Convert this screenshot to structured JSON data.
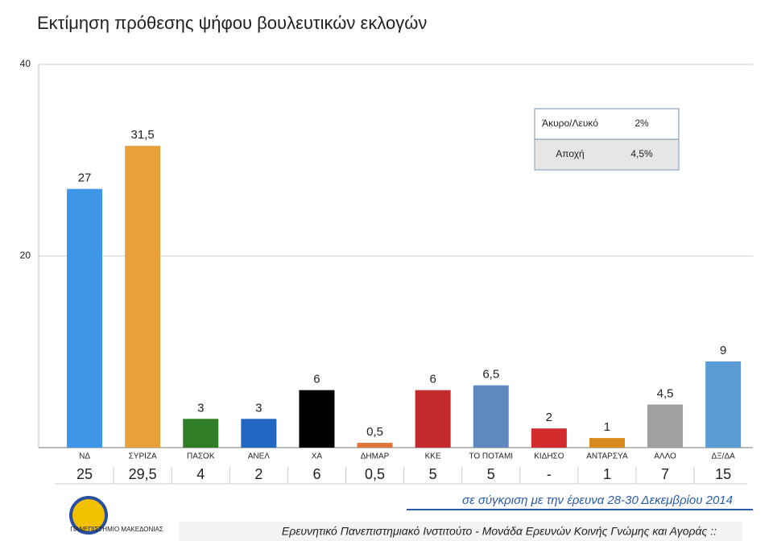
{
  "chart_data": {
    "type": "bar",
    "title": "Εκτίμηση πρόθεσης ψήφου βουλευτικών εκλογών",
    "categories": [
      "ΝΔ",
      "ΣΥΡΙΖΑ",
      "ΠΑΣΟΚ",
      "ΑΝΕΛ",
      "ΧΑ",
      "ΔΗΜΑΡ",
      "ΚΚΕ",
      "ΤΟ ΠΟΤΑΜΙ",
      "ΚΙΔΗΣΟ",
      "ΑΝΤΑΡΣΥΑ",
      "ΑΛΛΟ",
      "ΔΞ/ΔΑ"
    ],
    "values": [
      27,
      31.5,
      3,
      3,
      6,
      0.5,
      6,
      6.5,
      2,
      1,
      4.5,
      9
    ],
    "value_labels": [
      "27",
      "31,5",
      "3",
      "3",
      "6",
      "0,5",
      "6",
      "6,5",
      "2",
      "1",
      "4,5",
      "9"
    ],
    "colors": [
      "#3d96e8",
      "#e8a03c",
      "#2f7d25",
      "#2166c0",
      "#000000",
      "#e0733a",
      "#c32a2e",
      "#5f88bf",
      "#d22b2b",
      "#d98a1e",
      "#a0a0a0",
      "#5a9bd6"
    ],
    "ylim": [
      0,
      40
    ],
    "yticks": [
      20,
      40
    ],
    "grid": true
  },
  "comparison": {
    "values": [
      "25",
      "29,5",
      "4",
      "2",
      "6",
      "0,5",
      "5",
      "5",
      "-",
      "1",
      "7",
      "15"
    ],
    "note": "σε σύγκριση με την έρευνα 28-30 Δεκεμβρίου 2014"
  },
  "inset_table": {
    "rows": [
      [
        "Άκυρο/Λευκό",
        "2%"
      ],
      [
        "Αποχή",
        "4,5%"
      ]
    ]
  },
  "logo_text": "ΠΑΝΕΠΙΣΤΗΜΙΟ ΜΑΚΕΔΟΝΙΑΣ",
  "footer": "Ερευνητικό Πανεπιστημιακό Ινστιτούτο - Μονάδα Ερευνών Κοινής Γνώμης και Αγοράς ::"
}
